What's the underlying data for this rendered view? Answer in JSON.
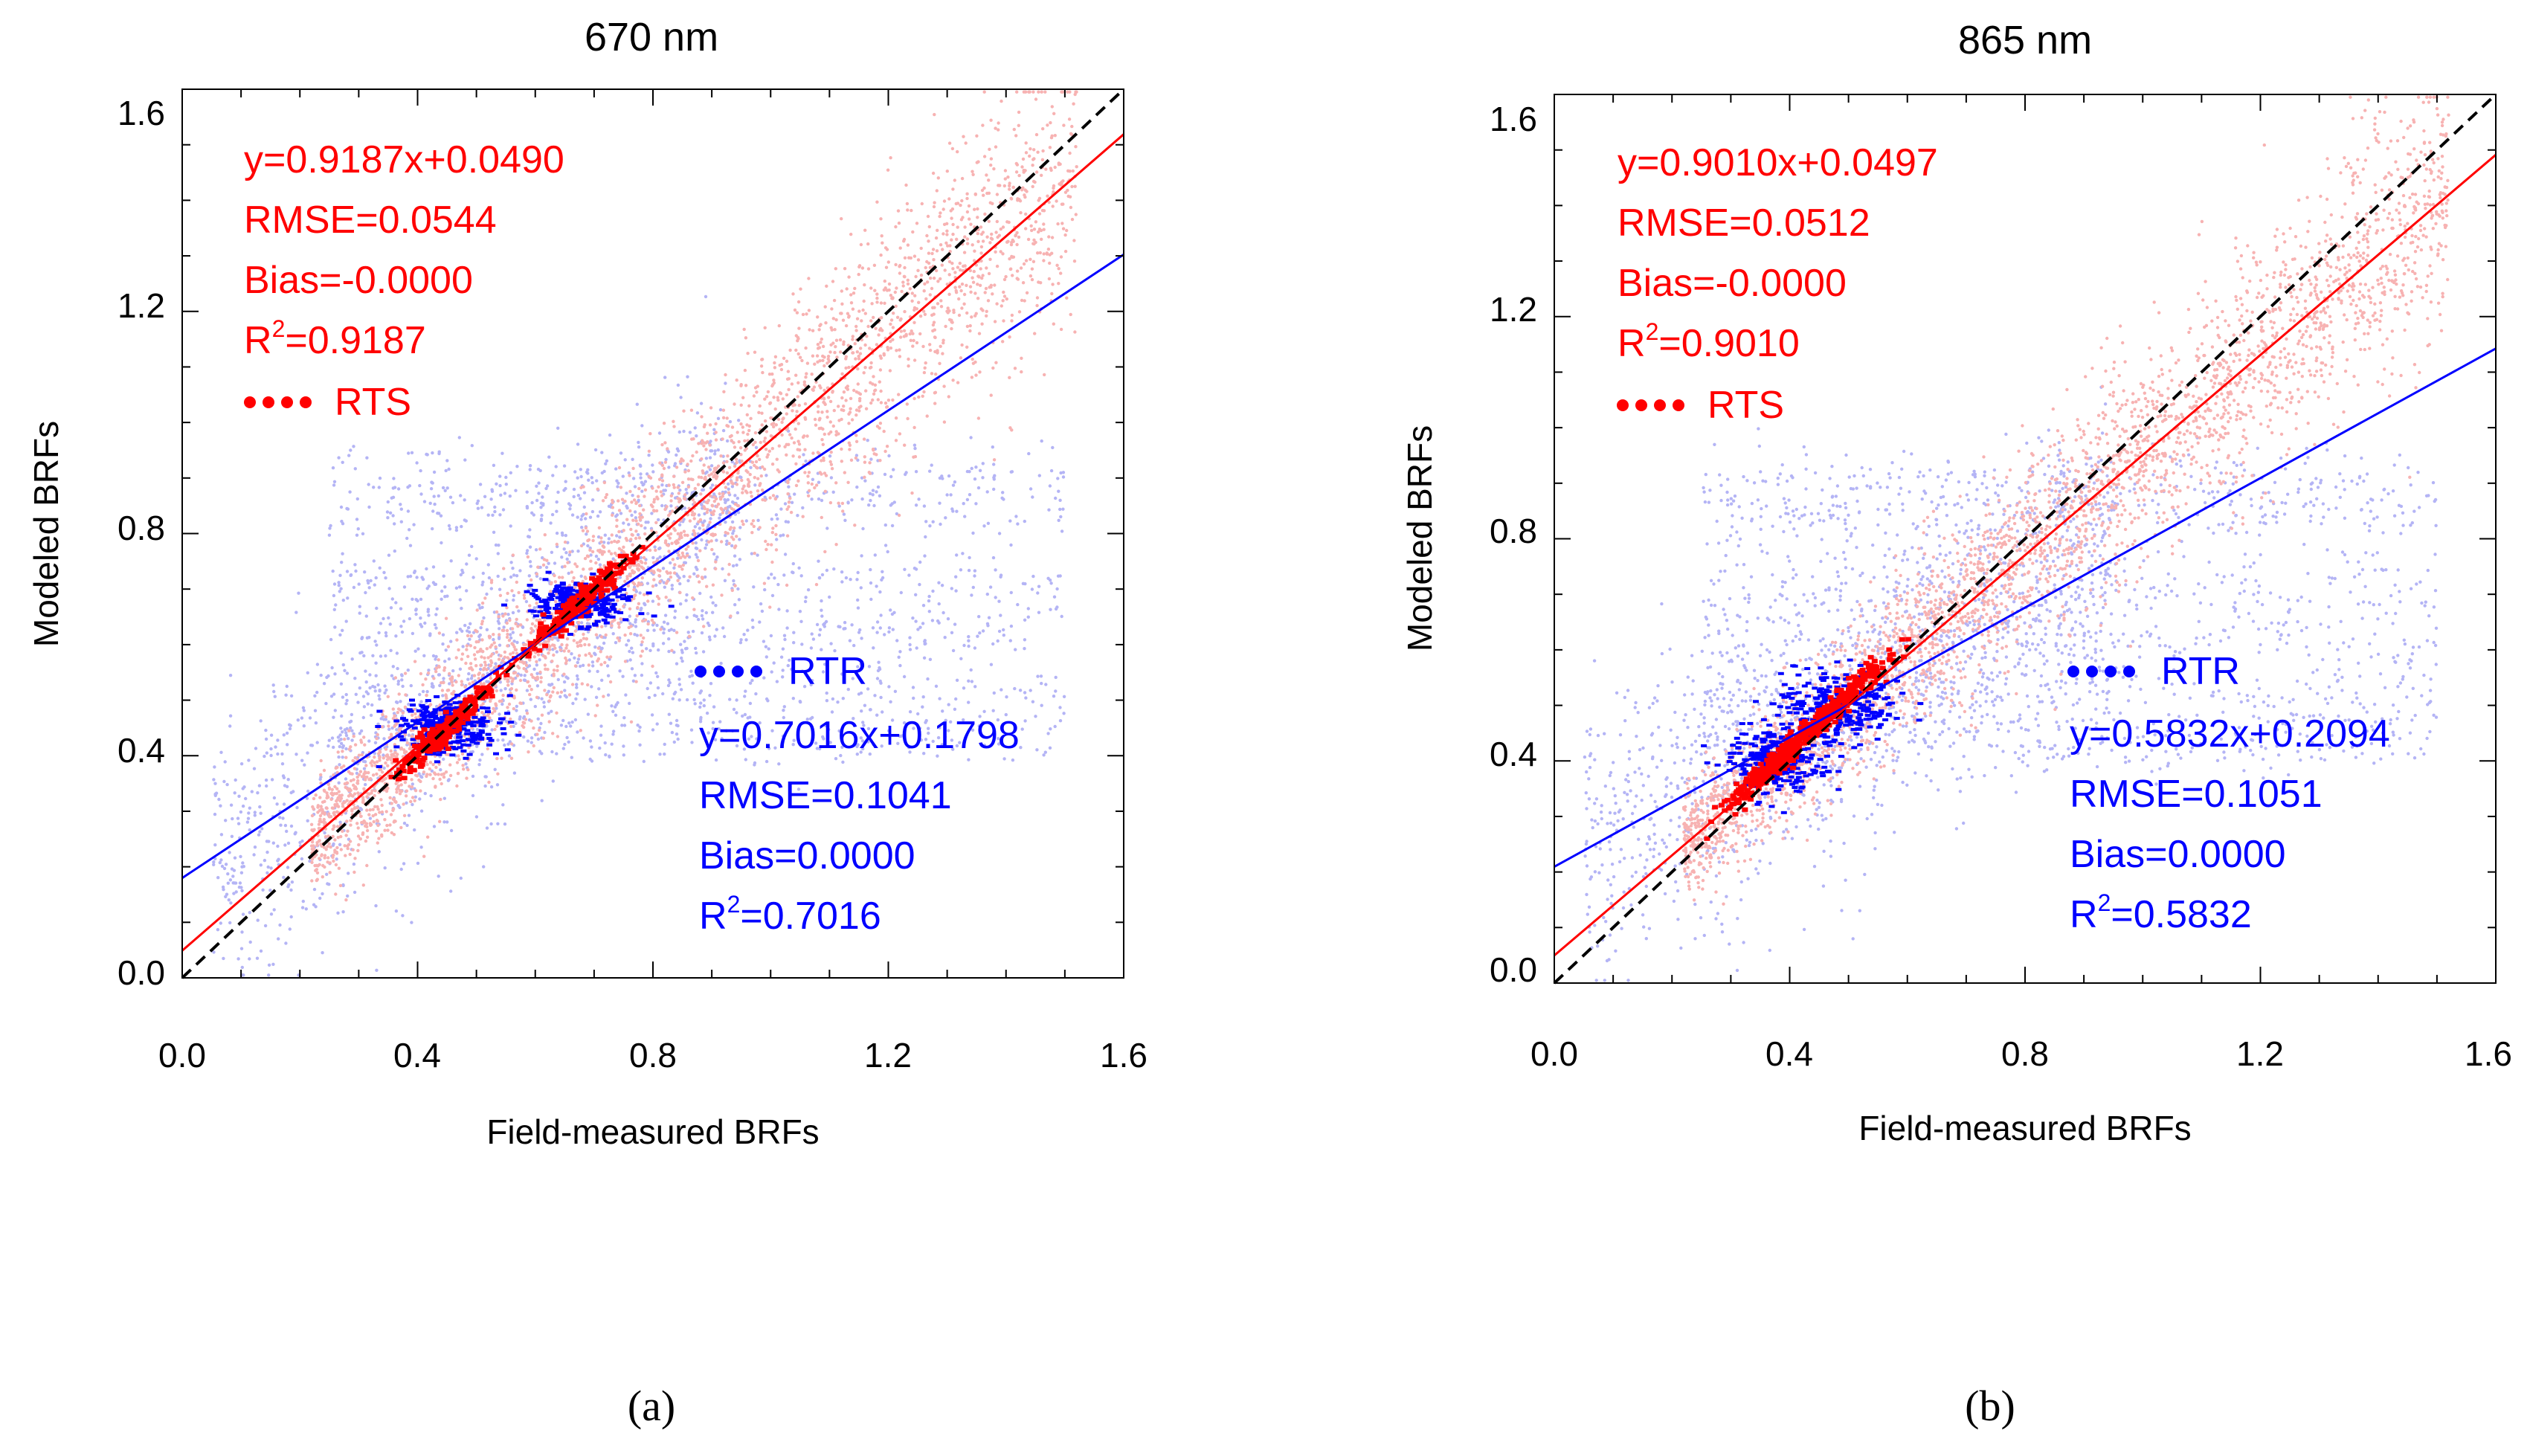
{
  "colors": {
    "rts": "#ff0000",
    "rtr": "#0000ff",
    "rts_cloud": "#f7b2b2",
    "rtr_cloud": "#b4b4f5",
    "one_to_one": "#000000"
  },
  "chart_data": [
    {
      "type": "scatter",
      "title": "670 nm",
      "caption": "(a)",
      "xlabel": "Field-measured BRFs",
      "ylabel": "Modeled BRFs",
      "xlim": [
        0,
        1.6
      ],
      "ylim": [
        0,
        1.6
      ],
      "xticks": [
        "0.0",
        "0.4",
        "0.8",
        "1.2",
        "1.6"
      ],
      "yticks": [
        "0.0",
        "0.4",
        "0.8",
        "1.2",
        "1.6"
      ],
      "series": [
        {
          "name": "RTS",
          "legend_label": "RTS",
          "fit": {
            "slope": 0.9187,
            "intercept": 0.049
          },
          "stats": [
            "y=0.9187x+0.0490",
            "RMSE=0.0544",
            "Bias=-0.0000"
          ],
          "r2_label": "R",
          "r2_sup": "2",
          "r2_value": "=0.9187"
        },
        {
          "name": "RTR",
          "legend_label": "RTR",
          "fit": {
            "slope": 0.7016,
            "intercept": 0.1798
          },
          "stats": [
            "y=0.7016x+0.1798",
            "RMSE=0.1041",
            "Bias=0.0000"
          ],
          "r2_label": "R",
          "r2_sup": "2",
          "r2_value": "=0.7016"
        }
      ]
    },
    {
      "type": "scatter",
      "title": "865 nm",
      "caption": "(b)",
      "xlabel": "Field-measured BRFs",
      "ylabel": "Modeled BRFs",
      "xlim": [
        0,
        1.6
      ],
      "ylim": [
        0,
        1.6
      ],
      "xticks": [
        "0.0",
        "0.4",
        "0.8",
        "1.2",
        "1.6"
      ],
      "yticks": [
        "0.0",
        "0.4",
        "0.8",
        "1.2",
        "1.6"
      ],
      "series": [
        {
          "name": "RTS",
          "legend_label": "RTS",
          "fit": {
            "slope": 0.901,
            "intercept": 0.0497
          },
          "stats": [
            "y=0.9010x+0.0497",
            "RMSE=0.0512",
            "Bias=-0.0000"
          ],
          "r2_label": "R",
          "r2_sup": "2",
          "r2_value": "=0.9010"
        },
        {
          "name": "RTR",
          "legend_label": "RTR",
          "fit": {
            "slope": 0.5832,
            "intercept": 0.2094
          },
          "stats": [
            "y=0.5832x+0.2094",
            "RMSE=0.1051",
            "Bias=0.0000"
          ],
          "r2_label": "R",
          "r2_sup": "2",
          "r2_value": "=0.5832"
        }
      ]
    }
  ]
}
